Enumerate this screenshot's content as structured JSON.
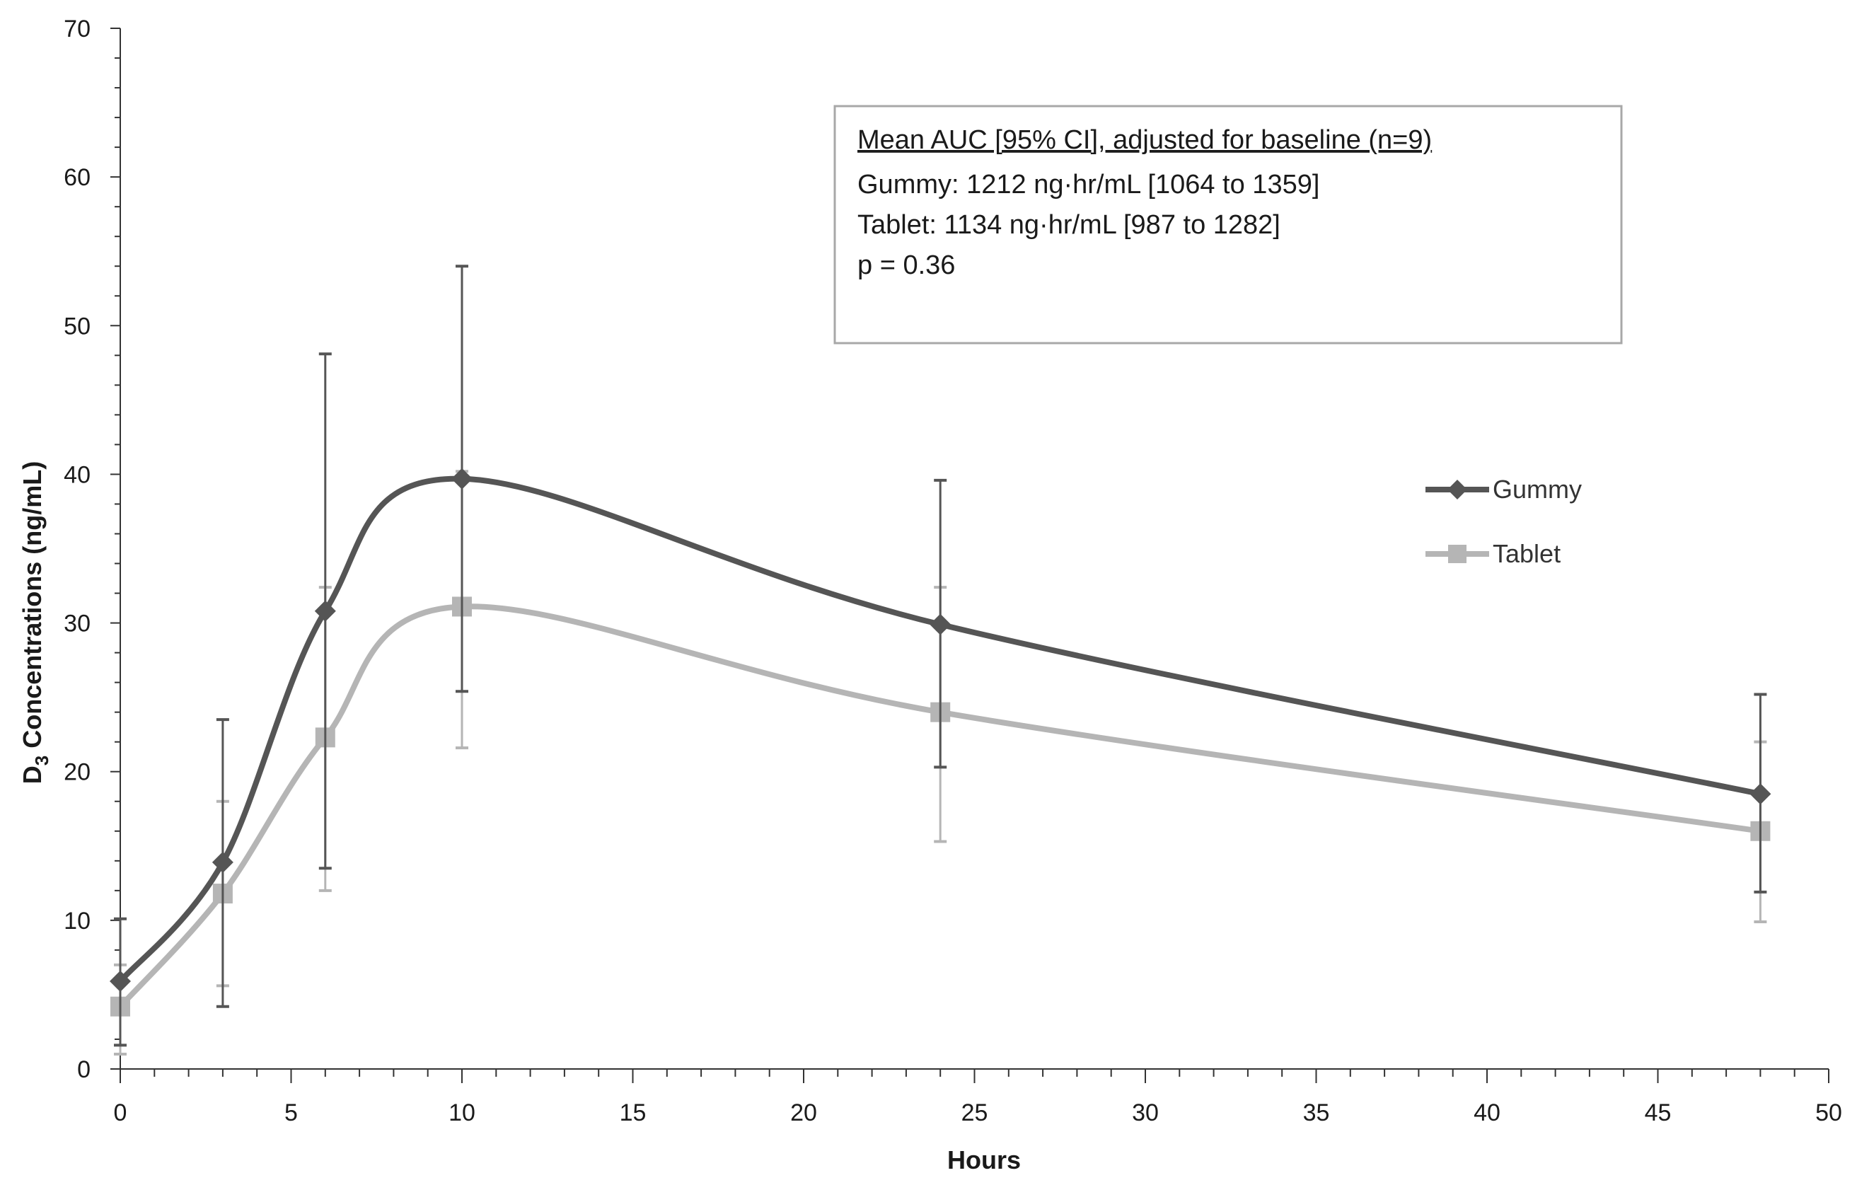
{
  "chart_data": {
    "type": "line",
    "title": "",
    "xlabel": "Hours",
    "ylabel_main": "D",
    "ylabel_sub": "3",
    "ylabel_rest": " Concentrations (ng/mL)",
    "xlim": [
      0,
      50
    ],
    "ylim": [
      0,
      70
    ],
    "x_ticks": [
      "0",
      "5",
      "10",
      "15",
      "20",
      "25",
      "30",
      "35",
      "40",
      "45",
      "50"
    ],
    "y_ticks": [
      "0",
      "10",
      "20",
      "30",
      "40",
      "50",
      "60",
      "70"
    ],
    "grid": false,
    "legend_position": "right",
    "x": [
      0,
      3,
      6,
      10,
      24,
      48
    ],
    "series": [
      {
        "name": "Gummy",
        "color": "#555555",
        "marker": "diamond",
        "values": [
          5.9,
          13.9,
          30.8,
          39.7,
          29.9,
          18.5
        ],
        "err_upper": [
          10.1,
          23.5,
          48.1,
          54.0,
          39.6,
          25.2
        ],
        "err_lower": [
          1.6,
          4.2,
          13.5,
          25.4,
          20.3,
          11.9
        ]
      },
      {
        "name": "Tablet",
        "color": "#b5b5b5",
        "marker": "square",
        "values": [
          4.2,
          11.8,
          22.3,
          31.1,
          24.0,
          16.0
        ],
        "err_upper": [
          7.0,
          18.0,
          32.4,
          40.2,
          32.4,
          22.0
        ],
        "err_lower": [
          1.0,
          5.6,
          12.0,
          21.6,
          15.3,
          9.9
        ]
      }
    ],
    "annotation": {
      "heading": "Mean AUC [95% CI], adjusted for baseline (n=9)",
      "lines": [
        "Gummy: 1212 ng·hr/mL [1064 to 1359]",
        "Tablet: 1134 ng·hr/mL [987 to 1282]",
        "p = 0.36"
      ]
    }
  }
}
